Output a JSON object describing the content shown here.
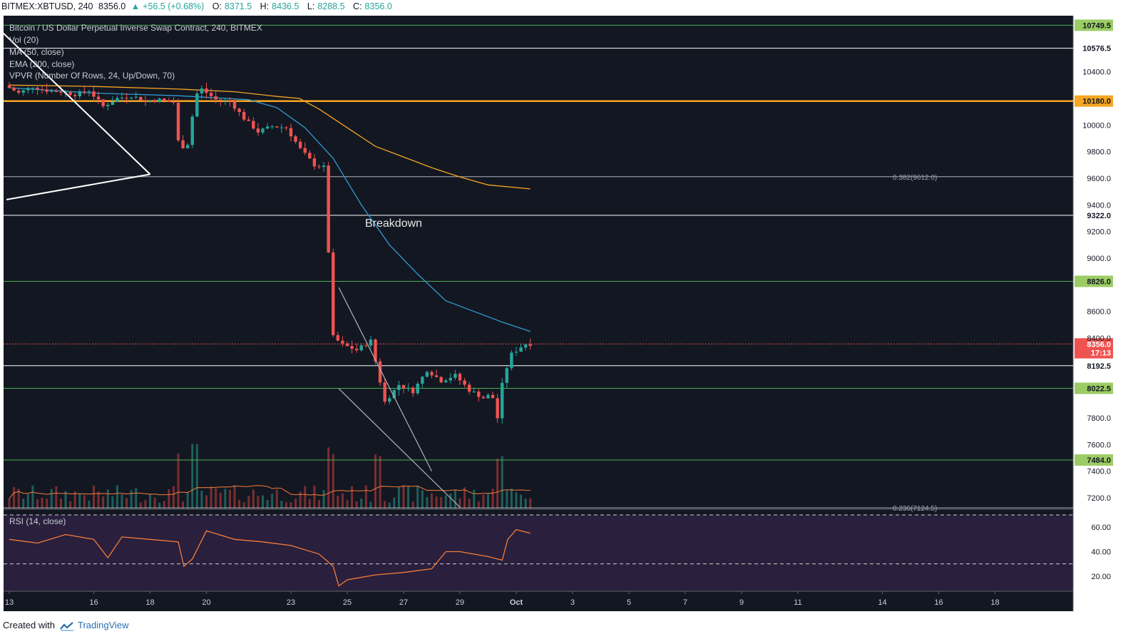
{
  "header": {
    "symbol": "BITMEX:XBTUSD, 240",
    "last": "8356.0",
    "change": "+56.5 (+0.68%)",
    "o_label": "O:",
    "o_value": "8371.5",
    "h_label": "H:",
    "h_value": "8436.5",
    "l_label": "L:",
    "l_value": "8288.5",
    "c_label": "C:",
    "c_value": "8356.0"
  },
  "legend": {
    "title": "Bitcoin / US Dollar Perpetual Inverse Swap Contract, 240, BITMEX",
    "vol": "Vol (20)",
    "ma": "MA (50, close)",
    "ema": "EMA (200, close)",
    "vpvr": "VPVR (Number Of Rows, 24, Up/Down, 70)",
    "rsi": "RSI (14, close)"
  },
  "annotations": {
    "breakdown": "Breakdown",
    "fib_upper": "0.382(9612.0)",
    "fib_lower": "0.236(7124.5)"
  },
  "footer": {
    "created_with": "Created with",
    "brand": "TradingView"
  },
  "colors": {
    "background": "#131722",
    "candle_up": "#26a69a",
    "candle_down": "#ef5350",
    "ma50": "#2e9ccf",
    "ema200": "#f5a623",
    "rsi_line": "#f57c3a",
    "rsi_band": "#2a1f3d",
    "level_green": "#4caf50",
    "level_orange": "#f5a623",
    "level_white": "#ffffff",
    "last_price": "#ef5350"
  },
  "chart_data": {
    "type": "candlestick",
    "title": "Bitcoin / US Dollar Perpetual Inverse Swap Contract, 240, BITMEX",
    "timeframe": "240",
    "x_ticks": [
      "13",
      "16",
      "18",
      "20",
      "23",
      "25",
      "27",
      "29",
      "Oct",
      "3",
      "5",
      "7",
      "9",
      "11",
      "14",
      "16",
      "18"
    ],
    "y_ticks": [
      "10400.0",
      "10000.0",
      "9800.0",
      "9600.0",
      "9400.0",
      "9200.0",
      "9000.0",
      "8600.0",
      "8400.0",
      "7800.0",
      "7600.0",
      "7400.0",
      "7200.0"
    ],
    "ylim": [
      7100,
      10800
    ],
    "price_levels": [
      {
        "label": "10749.5",
        "value": 10749.5,
        "kind": "green"
      },
      {
        "label": "10576.5",
        "value": 10576.5,
        "kind": "white"
      },
      {
        "label": "10180.0",
        "value": 10180.0,
        "kind": "orange"
      },
      {
        "label": "9322.0",
        "value": 9322.0,
        "kind": "white"
      },
      {
        "label": "8826.0",
        "value": 8826.0,
        "kind": "green"
      },
      {
        "label": "8356.0",
        "value": 8356.0,
        "kind": "last"
      },
      {
        "label": "17:13",
        "value": 8290.0,
        "kind": "timer"
      },
      {
        "label": "8192.5",
        "value": 8192.5,
        "kind": "white"
      },
      {
        "label": "8022.5",
        "value": 8022.5,
        "kind": "green"
      },
      {
        "label": "7484.0",
        "value": 7484.0,
        "kind": "green"
      }
    ],
    "series": [
      {
        "name": "XBTUSD",
        "style": "candles",
        "ohlc_anchor_path": [
          [
            13.0,
            10300
          ],
          [
            13.5,
            10240
          ],
          [
            14.0,
            10290
          ],
          [
            14.5,
            10260
          ],
          [
            15.0,
            10250
          ],
          [
            15.5,
            10230
          ],
          [
            16.0,
            10260
          ],
          [
            16.5,
            10140
          ],
          [
            17.0,
            10200
          ],
          [
            17.5,
            10220
          ],
          [
            18.0,
            10180
          ],
          [
            18.5,
            10190
          ],
          [
            19.0,
            10170
          ],
          [
            19.2,
            9820
          ],
          [
            19.5,
            9860
          ],
          [
            19.8,
            10230
          ],
          [
            20.0,
            10270
          ],
          [
            20.5,
            10190
          ],
          [
            21.0,
            10180
          ],
          [
            21.5,
            10050
          ],
          [
            22.0,
            9950
          ],
          [
            22.5,
            9990
          ],
          [
            23.0,
            9980
          ],
          [
            23.5,
            9820
          ],
          [
            24.0,
            9700
          ],
          [
            24.4,
            9680
          ],
          [
            24.6,
            8420
          ],
          [
            25.0,
            8350
          ],
          [
            25.5,
            8310
          ],
          [
            26.0,
            8380
          ],
          [
            26.5,
            7920
          ],
          [
            27.0,
            8050
          ],
          [
            27.5,
            8000
          ],
          [
            28.0,
            8160
          ],
          [
            28.5,
            8080
          ],
          [
            29.0,
            8120
          ],
          [
            29.5,
            8010
          ],
          [
            30.0,
            7950
          ],
          [
            30.3,
            7980
          ],
          [
            30.5,
            7800
          ],
          [
            30.7,
            8100
          ],
          [
            31.0,
            8280
          ],
          [
            31.3,
            8330
          ],
          [
            31.5,
            8356
          ]
        ]
      },
      {
        "name": "MA (50, close)",
        "values": [
          [
            13.0,
            10280
          ],
          [
            16.0,
            10240
          ],
          [
            19.0,
            10220
          ],
          [
            21.5,
            10190
          ],
          [
            22.5,
            10130
          ],
          [
            23.5,
            9980
          ],
          [
            24.5,
            9750
          ],
          [
            25.5,
            9400
          ],
          [
            26.5,
            9100
          ],
          [
            27.5,
            8880
          ],
          [
            28.5,
            8680
          ],
          [
            29.5,
            8600
          ],
          [
            30.5,
            8520
          ],
          [
            31.5,
            8450
          ]
        ]
      },
      {
        "name": "EMA (200, close)",
        "values": [
          [
            13.0,
            10300
          ],
          [
            16.0,
            10290
          ],
          [
            19.0,
            10270
          ],
          [
            21.0,
            10250
          ],
          [
            22.5,
            10215
          ],
          [
            23.3,
            10200
          ],
          [
            24.0,
            10120
          ],
          [
            25.0,
            9980
          ],
          [
            26.0,
            9840
          ],
          [
            27.0,
            9760
          ],
          [
            28.0,
            9680
          ],
          [
            29.0,
            9610
          ],
          [
            30.0,
            9550
          ],
          [
            31.5,
            9520
          ]
        ]
      },
      {
        "name": "RSI (14, close)",
        "values": [
          [
            13.0,
            50
          ],
          [
            14.0,
            47
          ],
          [
            15.0,
            54
          ],
          [
            16.0,
            50
          ],
          [
            16.5,
            35
          ],
          [
            17.0,
            52
          ],
          [
            18.0,
            50
          ],
          [
            19.0,
            48
          ],
          [
            19.2,
            28
          ],
          [
            19.5,
            34
          ],
          [
            20.0,
            57
          ],
          [
            21.0,
            50
          ],
          [
            22.0,
            48
          ],
          [
            23.0,
            45
          ],
          [
            24.0,
            38
          ],
          [
            24.5,
            28
          ],
          [
            24.7,
            12
          ],
          [
            25.0,
            17
          ],
          [
            26.0,
            21
          ],
          [
            26.5,
            22
          ],
          [
            27.0,
            23
          ],
          [
            28.0,
            26
          ],
          [
            28.5,
            40
          ],
          [
            29.0,
            40
          ],
          [
            30.0,
            36
          ],
          [
            30.5,
            33
          ],
          [
            30.7,
            50
          ],
          [
            31.0,
            58
          ],
          [
            31.5,
            55
          ]
        ]
      }
    ],
    "rsi_ylim": [
      10,
      70
    ],
    "rsi_ticks": [
      "60.00",
      "40.00",
      "20.00"
    ],
    "rsi_bands": [
      30,
      70
    ],
    "trendlines": [
      {
        "name": "upper-triangle-line",
        "points": [
          [
            12.0,
            10850
          ],
          [
            18.0,
            9630
          ]
        ]
      },
      {
        "name": "lower-triangle-line",
        "points": [
          [
            12.9,
            9440
          ],
          [
            18.0,
            9630
          ]
        ]
      },
      {
        "name": "wedge-upper",
        "points": [
          [
            24.7,
            8780
          ],
          [
            28.0,
            7400
          ]
        ]
      },
      {
        "name": "wedge-lower",
        "points": [
          [
            24.7,
            8020
          ],
          [
            29.0,
            7130
          ]
        ]
      }
    ]
  }
}
